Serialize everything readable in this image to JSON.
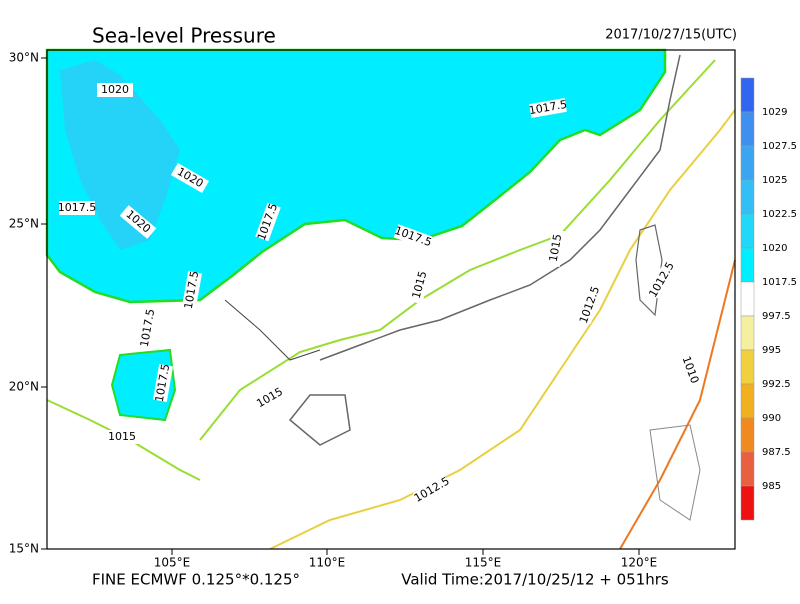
{
  "header": {
    "title": "Sea-level Pressure",
    "time": "2017/10/27/15(UTC)"
  },
  "map": {
    "lat_labels": [
      "30°N",
      "25°N",
      "20°N",
      "15°N"
    ],
    "lon_labels": [
      "105°E",
      "110°E",
      "115°E",
      "120°E"
    ],
    "contour_labels": [
      "1020",
      "1020",
      "1020",
      "1017.5",
      "1017.5",
      "1017.5",
      "1017.5",
      "1017.5",
      "1017.5",
      "1017.5",
      "1015",
      "1015",
      "1015",
      "1015",
      "1012.5",
      "1012.5",
      "1012.5",
      "1010"
    ]
  },
  "colorbar": {
    "colors": [
      "#3366ee",
      "#3f8ff0",
      "#3aa6f2",
      "#33bff5",
      "#22d8f8",
      "#00eeff",
      "#ffffff",
      "#f5f0a0",
      "#f0d040",
      "#f0b020",
      "#f08a20",
      "#e86040",
      "#ee1111"
    ],
    "labels": [
      "1029",
      "1027.5",
      "1025",
      "1022.5",
      "1020",
      "1017.5",
      "997.5",
      "995",
      "992.5",
      "990",
      "987.5",
      "985"
    ]
  },
  "footer": {
    "left": "FINE ECMWF 0.125°*0.125°",
    "right": "Valid Time:2017/10/25/12 + 051hrs"
  }
}
